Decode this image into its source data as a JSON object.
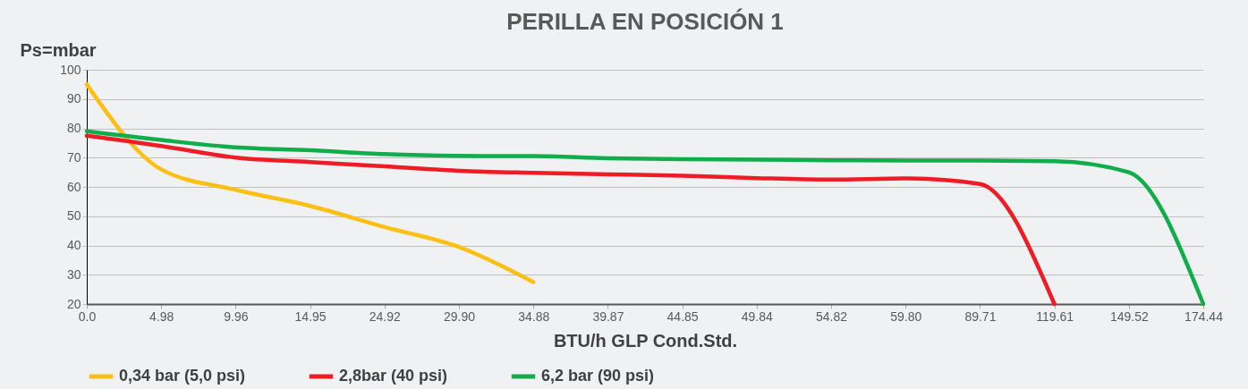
{
  "chart_data": {
    "type": "line",
    "title": "PERILLA EN POSICIÓN 1",
    "xlabel": "BTU/h GLP  Cond.Std.",
    "ylabel": "Ps=mbar",
    "categories": [
      "0.0",
      "4.98",
      "9.96",
      "14.95",
      "24.92",
      "29.90",
      "34.88",
      "39.87",
      "44.85",
      "49.84",
      "54.82",
      "59.80",
      "89.71",
      "119.61",
      "149.52",
      "174.44"
    ],
    "ylim": [
      20,
      100
    ],
    "yticks": [
      20,
      30,
      40,
      50,
      60,
      70,
      80,
      90,
      100
    ],
    "grid": "y",
    "legend": "bottom",
    "series": [
      {
        "name": "0,34 bar (5,0 psi)",
        "color": "#fcbf14",
        "values": [
          95,
          66,
          59,
          53.5,
          46.3,
          39.5,
          27.5,
          null,
          null,
          null,
          null,
          null,
          null,
          null,
          null,
          null
        ]
      },
      {
        "name": "2,8bar (40 psi)",
        "color": "#ee1c25",
        "values": [
          77.5,
          74,
          70,
          68.5,
          67,
          65.5,
          64.8,
          64.3,
          63.8,
          63,
          62.5,
          62.9,
          61,
          20,
          null,
          null
        ]
      },
      {
        "name": "6,2 bar (90 psi)",
        "color": "#12ad4b",
        "values": [
          79,
          76,
          73.5,
          72.5,
          71.2,
          70.6,
          70.5,
          69.8,
          69.5,
          69.3,
          69.1,
          69,
          69,
          68.8,
          65,
          20
        ]
      }
    ]
  }
}
